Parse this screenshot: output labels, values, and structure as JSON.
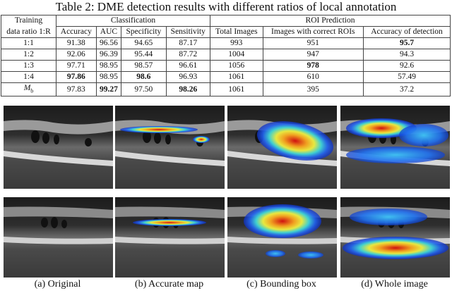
{
  "table": {
    "caption": "Table 2: DME detection results with different ratios of local annotation",
    "group_headers": [
      "Training",
      "Classification",
      "ROI Prediction"
    ],
    "column_headers": [
      "data ratio 1:R",
      "Accuracy",
      "AUC",
      "Specificity",
      "Sensitivity",
      "Total Images",
      "Images with correct ROIs",
      "Accuracy of detection"
    ],
    "rows": [
      [
        "1:1",
        "91.38",
        "96.56",
        "94.65",
        "87.17",
        "993",
        "951",
        "95.7"
      ],
      [
        "1:2",
        "92.06",
        "96.39",
        "95.44",
        "87.72",
        "1004",
        "947",
        "94.3"
      ],
      [
        "1:3",
        "97.71",
        "98.95",
        "98.57",
        "96.61",
        "1056",
        "978",
        "92.6"
      ],
      [
        "1:4",
        "97.86",
        "98.95",
        "98.6",
        "96.93",
        "1061",
        "610",
        "57.49"
      ],
      [
        {
          "text": "M",
          "subscript": "b"
        },
        "97.83",
        "99.27",
        "97.50",
        "98.26",
        "1061",
        "395",
        "37.2"
      ]
    ],
    "bold": [
      [
        0,
        7
      ],
      [
        2,
        6
      ],
      [
        3,
        1
      ],
      [
        3,
        3
      ],
      [
        4,
        2
      ],
      [
        4,
        4
      ]
    ]
  },
  "figure": {
    "captions": [
      "(a) Original",
      "(b) Accurate map",
      "(c) Bounding box",
      "(d) Whole image"
    ]
  }
}
